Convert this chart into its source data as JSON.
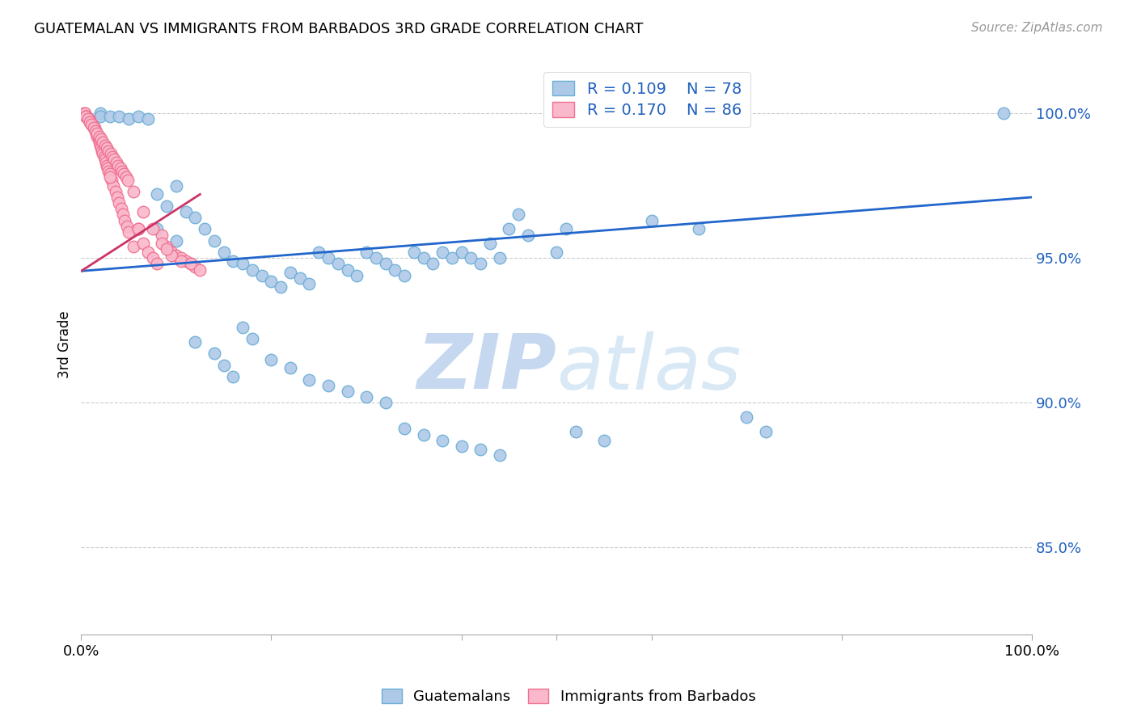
{
  "title": "GUATEMALAN VS IMMIGRANTS FROM BARBADOS 3RD GRADE CORRELATION CHART",
  "source": "Source: ZipAtlas.com",
  "ylabel": "3rd Grade",
  "xlim": [
    0.0,
    1.0
  ],
  "ylim": [
    0.82,
    1.02
  ],
  "yticks": [
    0.85,
    0.9,
    0.95,
    1.0
  ],
  "ytick_labels": [
    "85.0%",
    "90.0%",
    "95.0%",
    "100.0%"
  ],
  "blue_face": "#aec9e8",
  "blue_edge": "#6baed6",
  "pink_face": "#f9b8cb",
  "pink_edge": "#f07090",
  "line_blue": "#2266cc",
  "line_pink": "#cc3366",
  "legend_text_color": "#2060c0",
  "watermark_color": "#d0dff0",
  "blue_scatter_x": [
    0.02,
    0.02,
    0.03,
    0.04,
    0.05,
    0.06,
    0.07,
    0.08,
    0.09,
    0.1,
    0.11,
    0.12,
    0.13,
    0.14,
    0.15,
    0.16,
    0.17,
    0.18,
    0.19,
    0.2,
    0.21,
    0.22,
    0.23,
    0.24,
    0.25,
    0.26,
    0.27,
    0.28,
    0.29,
    0.3,
    0.31,
    0.32,
    0.33,
    0.34,
    0.35,
    0.36,
    0.37,
    0.38,
    0.39,
    0.4,
    0.41,
    0.42,
    0.43,
    0.44,
    0.45,
    0.46,
    0.47,
    0.5,
    0.51,
    0.52,
    0.55,
    0.6,
    0.65,
    0.7,
    0.72,
    0.97
  ],
  "blue_scatter_y": [
    1.0,
    0.999,
    0.999,
    0.999,
    0.998,
    0.999,
    0.998,
    0.972,
    0.968,
    0.975,
    0.966,
    0.964,
    0.96,
    0.956,
    0.952,
    0.949,
    0.948,
    0.946,
    0.944,
    0.942,
    0.94,
    0.945,
    0.943,
    0.941,
    0.952,
    0.95,
    0.948,
    0.946,
    0.944,
    0.952,
    0.95,
    0.948,
    0.946,
    0.944,
    0.952,
    0.95,
    0.948,
    0.952,
    0.95,
    0.952,
    0.95,
    0.948,
    0.955,
    0.95,
    0.96,
    0.965,
    0.958,
    0.952,
    0.96,
    0.89,
    0.887,
    0.963,
    0.96,
    0.895,
    0.89,
    1.0
  ],
  "blue_scatter_x2": [
    0.08,
    0.1,
    0.12,
    0.14,
    0.15,
    0.16,
    0.17,
    0.18,
    0.2,
    0.22,
    0.24,
    0.26,
    0.28,
    0.3,
    0.32,
    0.34,
    0.36,
    0.38,
    0.4,
    0.42,
    0.44
  ],
  "blue_scatter_y2": [
    0.96,
    0.956,
    0.921,
    0.917,
    0.913,
    0.909,
    0.926,
    0.922,
    0.915,
    0.912,
    0.908,
    0.906,
    0.904,
    0.902,
    0.9,
    0.891,
    0.889,
    0.887,
    0.885,
    0.884,
    0.882
  ],
  "pink_scatter_x": [
    0.003,
    0.004,
    0.005,
    0.006,
    0.007,
    0.008,
    0.009,
    0.01,
    0.011,
    0.012,
    0.013,
    0.014,
    0.015,
    0.016,
    0.017,
    0.018,
    0.019,
    0.02,
    0.021,
    0.022,
    0.023,
    0.024,
    0.025,
    0.026,
    0.027,
    0.028,
    0.029,
    0.03,
    0.032,
    0.034,
    0.036,
    0.038,
    0.04,
    0.042,
    0.044,
    0.046,
    0.048,
    0.05,
    0.055,
    0.06,
    0.065,
    0.07,
    0.075,
    0.08,
    0.085,
    0.09,
    0.095,
    0.1,
    0.105,
    0.11,
    0.115,
    0.12,
    0.005,
    0.007,
    0.009,
    0.011,
    0.013,
    0.015,
    0.017,
    0.019,
    0.021,
    0.023,
    0.025,
    0.027,
    0.029,
    0.031,
    0.033,
    0.035,
    0.037,
    0.039,
    0.041,
    0.043,
    0.045,
    0.047,
    0.049,
    0.055,
    0.065,
    0.075,
    0.085,
    0.095,
    0.105,
    0.115,
    0.125,
    0.03,
    0.06,
    0.09
  ],
  "pink_scatter_y": [
    1.0,
    1.0,
    0.999,
    0.999,
    0.998,
    0.998,
    0.997,
    0.997,
    0.996,
    0.996,
    0.995,
    0.995,
    0.994,
    0.993,
    0.992,
    0.991,
    0.99,
    0.989,
    0.988,
    0.987,
    0.986,
    0.985,
    0.984,
    0.983,
    0.982,
    0.981,
    0.98,
    0.979,
    0.977,
    0.975,
    0.973,
    0.971,
    0.969,
    0.967,
    0.965,
    0.963,
    0.961,
    0.959,
    0.954,
    0.96,
    0.955,
    0.952,
    0.95,
    0.948,
    0.958,
    0.954,
    0.952,
    0.951,
    0.95,
    0.949,
    0.948,
    0.947,
    0.999,
    0.998,
    0.997,
    0.996,
    0.995,
    0.994,
    0.993,
    0.992,
    0.991,
    0.99,
    0.989,
    0.988,
    0.987,
    0.986,
    0.985,
    0.984,
    0.983,
    0.982,
    0.981,
    0.98,
    0.979,
    0.978,
    0.977,
    0.973,
    0.966,
    0.96,
    0.955,
    0.951,
    0.949,
    0.948,
    0.946,
    0.978,
    0.96,
    0.953
  ],
  "blue_line_x": [
    0.0,
    1.0
  ],
  "blue_line_y": [
    0.9455,
    0.971
  ],
  "pink_line_x": [
    0.0,
    0.125
  ],
  "pink_line_y": [
    0.9455,
    0.972
  ]
}
